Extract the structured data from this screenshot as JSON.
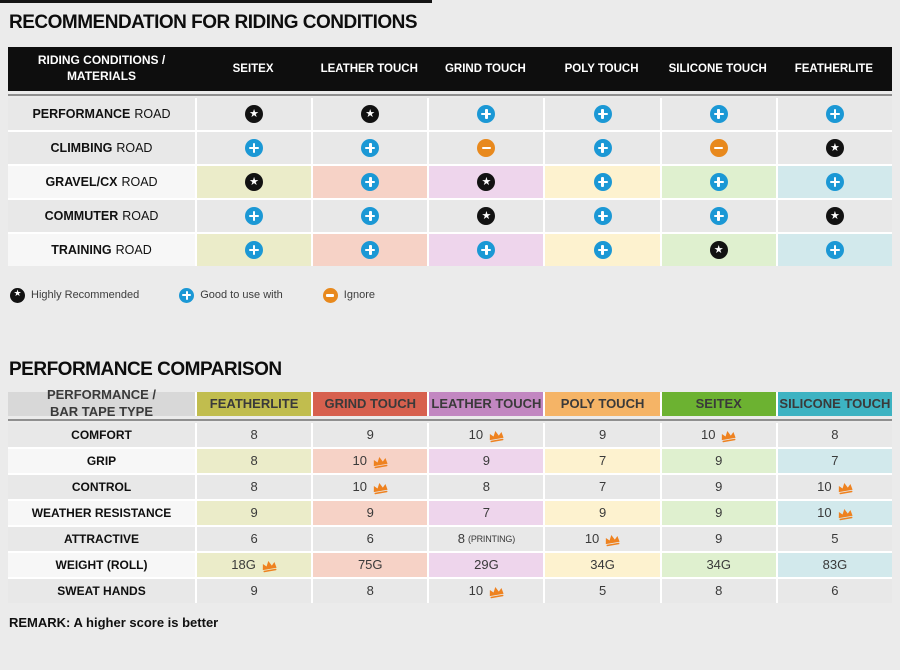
{
  "page": {
    "background": "#ebebeb"
  },
  "section1_title": "RECOMMENDATION FOR RIDING CONDITIONS",
  "section2_title": "PERFORMANCE COMPARISON",
  "remark": "REMARK: A higher score is better",
  "legend": [
    {
      "icon": "star",
      "label": "Highly Recommended"
    },
    {
      "icon": "plus",
      "label": "Good to use with"
    },
    {
      "icon": "minus",
      "label": "Ignore"
    }
  ],
  "icon_colors": {
    "star_circle": "#121212",
    "plus_circle": "#1b98d5",
    "minus_circle": "#e8891d",
    "crown": "#ee8220"
  },
  "chart_data": [
    {
      "type": "table",
      "title": "RECOMMENDATION FOR RIDING CONDITIONS",
      "corner_line1": "RIDING CONDITIONS /",
      "corner_line2": "MATERIALS",
      "columns": [
        "SEITEX",
        "LEATHER TOUCH",
        "GRIND TOUCH",
        "POLY TOUCH",
        "SILICONE TOUCH",
        "FEATHERLITE"
      ],
      "column_tints": [
        "#ebecc9",
        "#f6d2c6",
        "#eed5ec",
        "#fdf2cf",
        "#dff0cf",
        "#d2e9ec"
      ],
      "icon_map": {
        "highly_recommended": "star",
        "good_to_use_with": "plus",
        "ignore": "minus"
      },
      "rows": [
        {
          "bold": "PERFORMANCE",
          "rest": "ROAD",
          "tinted": false,
          "values": [
            "highly_recommended",
            "highly_recommended",
            "good_to_use_with",
            "good_to_use_with",
            "good_to_use_with",
            "good_to_use_with"
          ]
        },
        {
          "bold": "CLIMBING",
          "rest": "ROAD",
          "tinted": false,
          "values": [
            "good_to_use_with",
            "good_to_use_with",
            "ignore",
            "good_to_use_with",
            "ignore",
            "highly_recommended"
          ]
        },
        {
          "bold": "GRAVEL/CX",
          "rest": "ROAD",
          "tinted": true,
          "values": [
            "highly_recommended",
            "good_to_use_with",
            "highly_recommended",
            "good_to_use_with",
            "good_to_use_with",
            "good_to_use_with"
          ]
        },
        {
          "bold": "COMMUTER",
          "rest": "ROAD",
          "tinted": false,
          "values": [
            "good_to_use_with",
            "good_to_use_with",
            "highly_recommended",
            "good_to_use_with",
            "good_to_use_with",
            "highly_recommended"
          ]
        },
        {
          "bold": "TRAINING",
          "rest": "ROAD",
          "tinted": true,
          "values": [
            "good_to_use_with",
            "good_to_use_with",
            "good_to_use_with",
            "good_to_use_with",
            "highly_recommended",
            "good_to_use_with"
          ]
        }
      ]
    },
    {
      "type": "table",
      "title": "PERFORMANCE COMPARISON",
      "corner_line1": "PERFORMANCE /",
      "corner_line2": "BAR TAPE TYPE",
      "columns": [
        "FEATHERLITE",
        "GRIND TOUCH",
        "LEATHER TOUCH",
        "POLY TOUCH",
        "SEITEX",
        "SILICONE TOUCH"
      ],
      "column_colors": [
        "#c1bd4e",
        "#d7604e",
        "#c287c1",
        "#f5b466",
        "#6cb231",
        "#3db3c2"
      ],
      "column_tints": [
        "#ebecc9",
        "#f6d2c6",
        "#eed5ec",
        "#fdf2cf",
        "#dff0cf",
        "#d2e9ec"
      ],
      "rows": [
        {
          "label": "COMFORT",
          "tinted": false,
          "values": [
            "8",
            "9",
            "10",
            "9",
            "10",
            "8"
          ],
          "crowns": [
            false,
            false,
            true,
            false,
            true,
            false
          ],
          "notes": [
            "",
            "",
            "",
            "",
            "",
            ""
          ]
        },
        {
          "label": "GRIP",
          "tinted": true,
          "values": [
            "8",
            "10",
            "9",
            "7",
            "9",
            "7"
          ],
          "crowns": [
            false,
            true,
            false,
            false,
            false,
            false
          ],
          "notes": [
            "",
            "",
            "",
            "",
            "",
            ""
          ]
        },
        {
          "label": "CONTROL",
          "tinted": false,
          "values": [
            "8",
            "10",
            "8",
            "7",
            "9",
            "10"
          ],
          "crowns": [
            false,
            true,
            false,
            false,
            false,
            true
          ],
          "notes": [
            "",
            "",
            "",
            "",
            "",
            ""
          ]
        },
        {
          "label": "WEATHER RESISTANCE",
          "tinted": true,
          "values": [
            "9",
            "9",
            "7",
            "9",
            "9",
            "10"
          ],
          "crowns": [
            false,
            false,
            false,
            false,
            false,
            true
          ],
          "notes": [
            "",
            "",
            "",
            "",
            "",
            ""
          ]
        },
        {
          "label": "ATTRACTIVE",
          "tinted": false,
          "values": [
            "6",
            "6",
            "8",
            "10",
            "9",
            "5"
          ],
          "crowns": [
            false,
            false,
            false,
            true,
            false,
            false
          ],
          "notes": [
            "",
            "",
            "(PRINTING)",
            "",
            "",
            ""
          ]
        },
        {
          "label": "WEIGHT (ROLL)",
          "tinted": true,
          "values": [
            "18G",
            "75G",
            "29G",
            "34G",
            "34G",
            "83G"
          ],
          "crowns": [
            true,
            false,
            false,
            false,
            false,
            false
          ],
          "notes": [
            "",
            "",
            "",
            "",
            "",
            ""
          ]
        },
        {
          "label": "SWEAT HANDS",
          "tinted": false,
          "values": [
            "9",
            "8",
            "10",
            "5",
            "8",
            "6"
          ],
          "crowns": [
            false,
            false,
            true,
            false,
            false,
            false
          ],
          "notes": [
            "",
            "",
            "",
            "",
            "",
            ""
          ]
        }
      ]
    }
  ]
}
